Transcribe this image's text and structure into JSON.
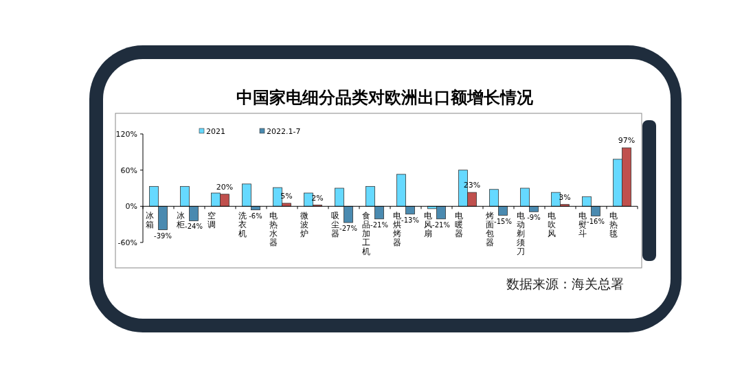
{
  "chart_data": {
    "type": "bar",
    "title": "中国家电细分品类对欧洲出口额增长情况",
    "categories": [
      "冰箱",
      "冰柜",
      "空调",
      "洗衣机",
      "电热水器",
      "微波炉",
      "吸尘器",
      "食品加工机",
      "电烘烤器",
      "电风扇",
      "电暖器",
      "烤面包器",
      "电动剃须刀",
      "电吹风",
      "电熨斗",
      "电热毯"
    ],
    "series": [
      {
        "name": "2021",
        "color": "#66d9ff",
        "values": [
          33,
          33,
          22,
          37,
          31,
          22,
          30,
          33,
          53,
          -4,
          60,
          28,
          30,
          23,
          16,
          78
        ]
      },
      {
        "name": "2022.1-7",
        "color": "#4a8ab0",
        "colors": [
          "#4a8ab0",
          "#4a8ab0",
          "#c0504d",
          "#4a8ab0",
          "#c0504d",
          "#c0504d",
          "#4a8ab0",
          "#4a8ab0",
          "#4a8ab0",
          "#4a8ab0",
          "#c0504d",
          "#4a8ab0",
          "#4a8ab0",
          "#c0504d",
          "#4a8ab0",
          "#c0504d"
        ],
        "values": [
          -39,
          -24,
          20,
          -6,
          5,
          2,
          -27,
          -21,
          -13,
          -21,
          23,
          -15,
          -9,
          3,
          -16,
          97
        ],
        "value_labels": [
          "-39%",
          "-24%",
          "20%",
          "-6%",
          "5%",
          "2%",
          "-27%",
          "-21%",
          "-13%",
          "-21%",
          "23%",
          "-15%",
          "-9%",
          "3%",
          "-16%",
          "97%"
        ]
      }
    ],
    "ylim": [
      -60,
      120
    ],
    "yticks": [
      {
        "value": -60,
        "label": "-60%"
      },
      {
        "value": 0,
        "label": "0%"
      },
      {
        "value": 60,
        "label": "60%"
      },
      {
        "value": 120,
        "label": "120%"
      }
    ],
    "legend": "top left",
    "annotations": [
      "数据来源：海关总署"
    ]
  }
}
